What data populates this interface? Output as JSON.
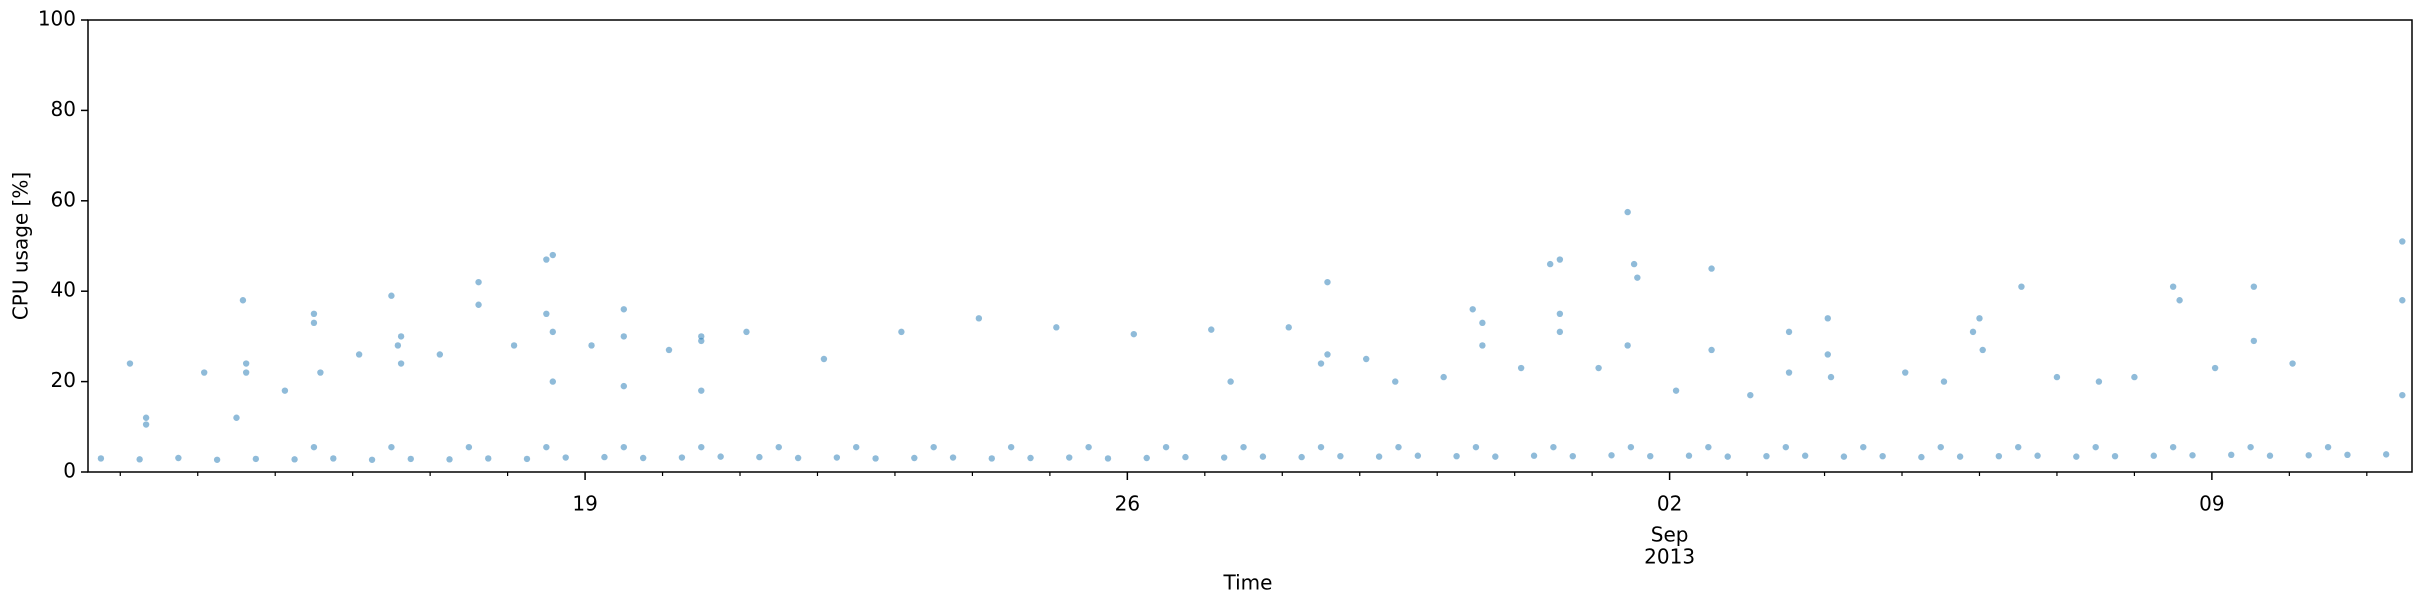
{
  "chart_data": {
    "type": "scatter",
    "xlabel": "Time",
    "ylabel": "CPU usage [%]",
    "color": "#1f77b4",
    "xlim": [
      "2013-08-12T14:00",
      "2013-09-11T14:00"
    ],
    "xticks": [
      {
        "value": "2013-08-19T00:00",
        "label": "19"
      },
      {
        "value": "2013-08-26T00:00",
        "label": "26"
      },
      {
        "value": "2013-09-02T00:00",
        "label": "02",
        "sublabel": [
          "Sep",
          "2013"
        ]
      },
      {
        "value": "2013-09-09T00:00",
        "label": "09"
      }
    ],
    "xminorticks": [
      "2013-08-13T00:00",
      "2013-08-14T00:00",
      "2013-08-15T00:00",
      "2013-08-16T00:00",
      "2013-08-17T00:00",
      "2013-08-18T00:00",
      "2013-08-20T00:00",
      "2013-08-21T00:00",
      "2013-08-22T00:00",
      "2013-08-23T00:00",
      "2013-08-24T00:00",
      "2013-08-25T00:00",
      "2013-08-27T00:00",
      "2013-08-28T00:00",
      "2013-08-29T00:00",
      "2013-08-30T00:00",
      "2013-08-31T00:00",
      "2013-09-01T00:00",
      "2013-09-03T00:00",
      "2013-09-04T00:00",
      "2013-09-05T00:00",
      "2013-09-06T00:00",
      "2013-09-07T00:00",
      "2013-09-08T00:00",
      "2013-09-10T00:00",
      "2013-09-11T00:00"
    ],
    "ylim": [
      0,
      100
    ],
    "yticks": [
      0,
      20,
      40,
      60,
      80,
      100
    ],
    "x": [
      "2013-08-12T18:00",
      "2013-08-13T06:00",
      "2013-08-13T18:00",
      "2013-08-14T06:00",
      "2013-08-14T18:00",
      "2013-08-15T06:00",
      "2013-08-15T18:00",
      "2013-08-16T06:00",
      "2013-08-16T18:00",
      "2013-08-17T06:00",
      "2013-08-17T18:00",
      "2013-08-18T06:00",
      "2013-08-18T18:00",
      "2013-08-19T06:00",
      "2013-08-19T18:00",
      "2013-08-20T06:00",
      "2013-08-20T18:00",
      "2013-08-21T06:00",
      "2013-08-21T18:00",
      "2013-08-22T06:00",
      "2013-08-22T18:00",
      "2013-08-23T06:00",
      "2013-08-23T18:00",
      "2013-08-24T06:00",
      "2013-08-24T18:00",
      "2013-08-25T06:00",
      "2013-08-25T18:00",
      "2013-08-26T06:00",
      "2013-08-26T18:00",
      "2013-08-27T06:00",
      "2013-08-27T18:00",
      "2013-08-28T06:00",
      "2013-08-28T18:00",
      "2013-08-29T06:00",
      "2013-08-29T18:00",
      "2013-08-30T06:00",
      "2013-08-30T18:00",
      "2013-08-31T06:00",
      "2013-08-31T18:00",
      "2013-09-01T06:00",
      "2013-09-01T18:00",
      "2013-09-02T06:00",
      "2013-09-02T18:00",
      "2013-09-03T06:00",
      "2013-09-03T18:00",
      "2013-09-04T06:00",
      "2013-09-04T18:00",
      "2013-09-05T06:00",
      "2013-09-05T18:00",
      "2013-09-06T06:00",
      "2013-09-06T18:00",
      "2013-09-07T06:00",
      "2013-09-07T18:00",
      "2013-09-08T06:00",
      "2013-09-08T18:00",
      "2013-09-09T06:00",
      "2013-09-09T18:00",
      "2013-09-10T06:00",
      "2013-09-10T18:00",
      "2013-09-11T06:00",
      "2013-08-15T12:00",
      "2013-08-16T12:00",
      "2013-08-17T12:00",
      "2013-08-18T12:00",
      "2013-08-19T12:00",
      "2013-08-20T12:00",
      "2013-08-21T12:00",
      "2013-08-22T12:00",
      "2013-08-23T12:00",
      "2013-08-24T12:00",
      "2013-08-25T12:00",
      "2013-08-26T12:00",
      "2013-08-27T12:00",
      "2013-08-28T12:00",
      "2013-08-29T12:00",
      "2013-08-30T12:00",
      "2013-08-31T12:00",
      "2013-09-01T12:00",
      "2013-09-02T12:00",
      "2013-09-03T12:00",
      "2013-09-04T12:00",
      "2013-09-05T12:00",
      "2013-09-06T12:00",
      "2013-09-07T12:00",
      "2013-09-08T12:00",
      "2013-09-09T12:00",
      "2013-09-10T12:00",
      "2013-08-13T03:00",
      "2013-08-13T08:00",
      "2013-08-13T08:00",
      "2013-08-14T02:00",
      "2013-08-14T12:00",
      "2013-08-14T14:00",
      "2013-08-14T15:00",
      "2013-08-14T15:00",
      "2013-08-15T03:00",
      "2013-08-15T12:00",
      "2013-08-15T12:00",
      "2013-08-15T14:00",
      "2013-08-16T02:00",
      "2013-08-16T12:00",
      "2013-08-16T14:00",
      "2013-08-16T15:00",
      "2013-08-16T15:00",
      "2013-08-17T03:00",
      "2013-08-17T15:00",
      "2013-08-17T15:00",
      "2013-08-18T02:00",
      "2013-08-18T12:00",
      "2013-08-18T14:00",
      "2013-08-18T12:00",
      "2013-08-18T14:00",
      "2013-08-18T14:00",
      "2013-08-19T02:00",
      "2013-08-19T12:00",
      "2013-08-19T12:00",
      "2013-08-19T12:00",
      "2013-08-20T02:00",
      "2013-08-20T12:00",
      "2013-08-20T12:00",
      "2013-08-20T12:00",
      "2013-08-21T02:00",
      "2013-08-22T02:00",
      "2013-08-23T02:00",
      "2013-08-24T02:00",
      "2013-08-25T02:00",
      "2013-08-26T02:00",
      "2013-08-27T02:00",
      "2013-08-27T08:00",
      "2013-08-28T02:00",
      "2013-08-28T14:00",
      "2013-08-28T12:00",
      "2013-08-28T14:00",
      "2013-08-29T02:00",
      "2013-08-29T11:00",
      "2013-08-30T02:00",
      "2013-08-30T11:00",
      "2013-08-30T14:00",
      "2013-08-30T14:00",
      "2013-08-31T02:00",
      "2013-08-31T11:00",
      "2013-08-31T14:00",
      "2013-08-31T14:00",
      "2013-08-31T14:00",
      "2013-09-01T02:00",
      "2013-09-01T11:00",
      "2013-09-01T11:00",
      "2013-09-01T13:00",
      "2013-09-01T14:00",
      "2013-09-02T02:00",
      "2013-09-02T13:00",
      "2013-09-02T13:00",
      "2013-09-03T01:00",
      "2013-09-03T13:00",
      "2013-09-03T13:00",
      "2013-09-04T01:00",
      "2013-09-04T01:00",
      "2013-09-04T02:00",
      "2013-09-05T01:00",
      "2013-09-05T13:00",
      "2013-09-05T22:00",
      "2013-09-06T00:00",
      "2013-09-06T01:00",
      "2013-09-06T13:00",
      "2013-09-07T00:00",
      "2013-09-07T13:00",
      "2013-09-08T00:00",
      "2013-09-08T12:00",
      "2013-09-08T14:00",
      "2013-09-09T01:00",
      "2013-09-09T13:00",
      "2013-09-09T13:00",
      "2013-09-10T01:00",
      "2013-09-11T11:00",
      "2013-09-11T11:00",
      "2013-09-11T11:00"
    ],
    "values": [
      3.0,
      2.8,
      3.1,
      2.7,
      2.9,
      2.8,
      3.0,
      2.7,
      2.9,
      2.8,
      3.0,
      2.9,
      3.2,
      3.3,
      3.1,
      3.2,
      3.4,
      3.3,
      3.1,
      3.2,
      3.0,
      3.1,
      3.2,
      3.0,
      3.1,
      3.2,
      3.0,
      3.1,
      3.3,
      3.2,
      3.4,
      3.3,
      3.5,
      3.4,
      3.6,
      3.5,
      3.4,
      3.6,
      3.5,
      3.7,
      3.5,
      3.6,
      3.4,
      3.5,
      3.6,
      3.4,
      3.5,
      3.3,
      3.4,
      3.5,
      3.6,
      3.4,
      3.5,
      3.6,
      3.7,
      3.8,
      3.6,
      3.7,
      3.8,
      3.9,
      5.5,
      5.5,
      5.5,
      5.5,
      5.5,
      5.5,
      5.5,
      5.5,
      5.5,
      5.5,
      5.5,
      5.5,
      5.5,
      5.5,
      5.5,
      5.5,
      5.5,
      5.5,
      5.5,
      5.5,
      5.5,
      5.5,
      5.5,
      5.5,
      5.5,
      5.5,
      5.5,
      24,
      12,
      10.5,
      22,
      12,
      38,
      24,
      22,
      18,
      35,
      33,
      22,
      26,
      39,
      28,
      24,
      30,
      26,
      42,
      37,
      28,
      47,
      48,
      35,
      31,
      20,
      28,
      36,
      30,
      19,
      27,
      30,
      29,
      18,
      31,
      25,
      31,
      34,
      32,
      30.5,
      31.5,
      20,
      32,
      42,
      24,
      26,
      25,
      20,
      21,
      36,
      33,
      28,
      23,
      46,
      47,
      35,
      31,
      23,
      57.5,
      28,
      46,
      43,
      18,
      45,
      27,
      17,
      31,
      22,
      34,
      26,
      21,
      22,
      20,
      31,
      34,
      27,
      41,
      21,
      20,
      21,
      41,
      38,
      23,
      41,
      29,
      24,
      51,
      38,
      17
    ]
  }
}
